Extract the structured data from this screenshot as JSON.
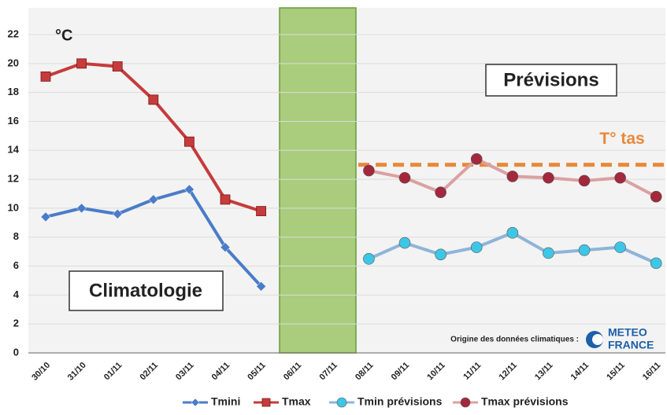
{
  "chart_data": {
    "type": "line",
    "unit_label": "°C",
    "categories": [
      "30/10",
      "31/10",
      "01/11",
      "02/11",
      "03/11",
      "04/11",
      "05/11",
      "06/11",
      "07/11",
      "08/11",
      "09/11",
      "10/11",
      "11/11",
      "12/11",
      "13/11",
      "14/11",
      "15/11",
      "16/11"
    ],
    "series": [
      {
        "name": "Tmini",
        "color": "#4a7cc7",
        "line_color": "#4a7cc7",
        "marker": "diamond",
        "values": [
          9.4,
          10.0,
          9.6,
          10.6,
          11.3,
          7.3,
          4.6,
          null,
          null,
          null,
          null,
          null,
          null,
          null,
          null,
          null,
          null,
          null
        ]
      },
      {
        "name": "Tmax",
        "color": "#c63b3b",
        "line_color": "#c63b3b",
        "marker": "square",
        "values": [
          19.1,
          20.0,
          19.8,
          17.5,
          14.6,
          10.6,
          9.8,
          null,
          null,
          null,
          null,
          null,
          null,
          null,
          null,
          null,
          null,
          null
        ]
      },
      {
        "name": "Tmin prévisions",
        "color": "#3ec6e6",
        "line_color": "#8fb4d8",
        "marker": "circle",
        "values": [
          null,
          null,
          null,
          null,
          null,
          null,
          null,
          null,
          null,
          6.5,
          7.6,
          6.8,
          7.3,
          8.3,
          6.9,
          7.1,
          7.3,
          6.2
        ]
      },
      {
        "name": "Tmax prévisions",
        "color": "#a3283c",
        "line_color": "#dca0a0",
        "marker": "circle",
        "values": [
          null,
          null,
          null,
          null,
          null,
          null,
          null,
          null,
          null,
          12.6,
          12.1,
          11.1,
          13.4,
          12.2,
          12.1,
          11.9,
          12.1,
          10.8
        ]
      }
    ],
    "threshold": {
      "value": 13,
      "label": "T° tas",
      "color": "#e8893a"
    },
    "annotations": [
      "Climatologie",
      "Prévisions",
      "Origine des données climatiques :"
    ],
    "logo": [
      "METEO",
      "FRANCE"
    ],
    "ylim": [
      0,
      22
    ],
    "yticks": [
      0,
      2,
      4,
      6,
      8,
      10,
      12,
      14,
      16,
      18,
      20,
      22
    ],
    "grid": true
  }
}
